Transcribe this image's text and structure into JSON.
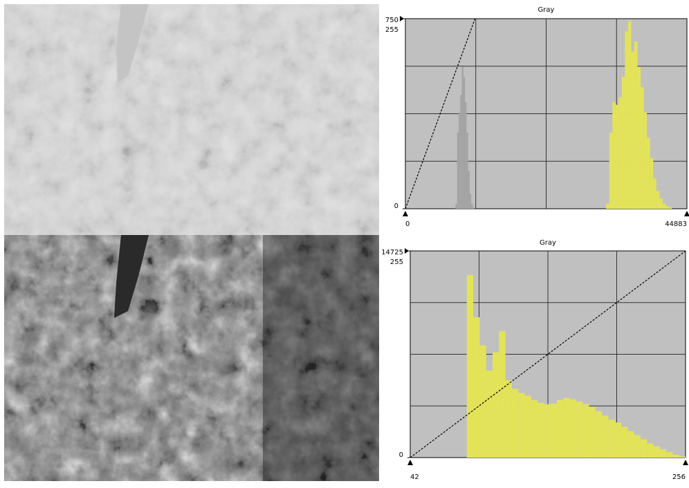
{
  "chart_data": [
    {
      "type": "histogram",
      "title": "Gray",
      "xlim": [
        0,
        44883
      ],
      "xticks": [
        0,
        44883
      ],
      "ylim": [
        0,
        750
      ],
      "yticks": [
        0,
        750
      ],
      "y2lim": [
        0,
        255
      ],
      "y2ticks": [
        255
      ],
      "series": [
        {
          "color": "#a3a3a3",
          "bins": [
            8000,
            8250,
            8500,
            8750,
            9000,
            9250,
            9500,
            9750,
            10000,
            10250,
            10500,
            10750,
            11000
          ],
          "values": [
            20,
            300,
            380,
            450,
            560,
            520,
            420,
            300,
            150,
            60,
            20,
            5
          ]
        },
        {
          "color": "#e3e35a",
          "bins": [
            32000,
            32500,
            33000,
            33500,
            34000,
            34500,
            35000,
            35500,
            36000,
            36500,
            37000,
            37500,
            38000,
            38500,
            39000,
            39500,
            40000,
            40500,
            41000,
            41500,
            42000,
            42500,
            43000
          ],
          "values": [
            20,
            300,
            420,
            410,
            440,
            520,
            700,
            740,
            620,
            660,
            560,
            480,
            380,
            280,
            200,
            120,
            70,
            40,
            20,
            10,
            5,
            0
          ]
        }
      ],
      "transfer": {
        "x": [
          0,
          11100
        ],
        "y": [
          0,
          255
        ],
        "axis": "y2"
      }
    },
    {
      "type": "histogram",
      "title": "Gray",
      "xlim": [
        42,
        256
      ],
      "xticks": [
        42,
        256
      ],
      "ylim": [
        0,
        14725
      ],
      "yticks": [
        0,
        14725
      ],
      "y2lim": [
        0,
        255
      ],
      "y2ticks": [
        255
      ],
      "series": [
        {
          "color": "#e3e35a",
          "bins": [
            86,
            91,
            96,
            101,
            106,
            111,
            116,
            121,
            126,
            131,
            136,
            141,
            146,
            151,
            156,
            161,
            166,
            171,
            176,
            181,
            186,
            191,
            196,
            201,
            206,
            211,
            216,
            221,
            226,
            231,
            236,
            241,
            246,
            251,
            256
          ],
          "values": [
            13000,
            10000,
            8000,
            6200,
            7500,
            9000,
            5500,
            4900,
            4600,
            4400,
            4100,
            3900,
            3800,
            3850,
            4100,
            4250,
            4150,
            4000,
            3800,
            3600,
            3300,
            3000,
            2700,
            2500,
            2200,
            1900,
            1600,
            1300,
            1000,
            800,
            600,
            400,
            200,
            80
          ]
        }
      ],
      "transfer": {
        "x": [
          42,
          256
        ],
        "y": [
          0,
          255
        ],
        "axis": "y2"
      }
    }
  ]
}
